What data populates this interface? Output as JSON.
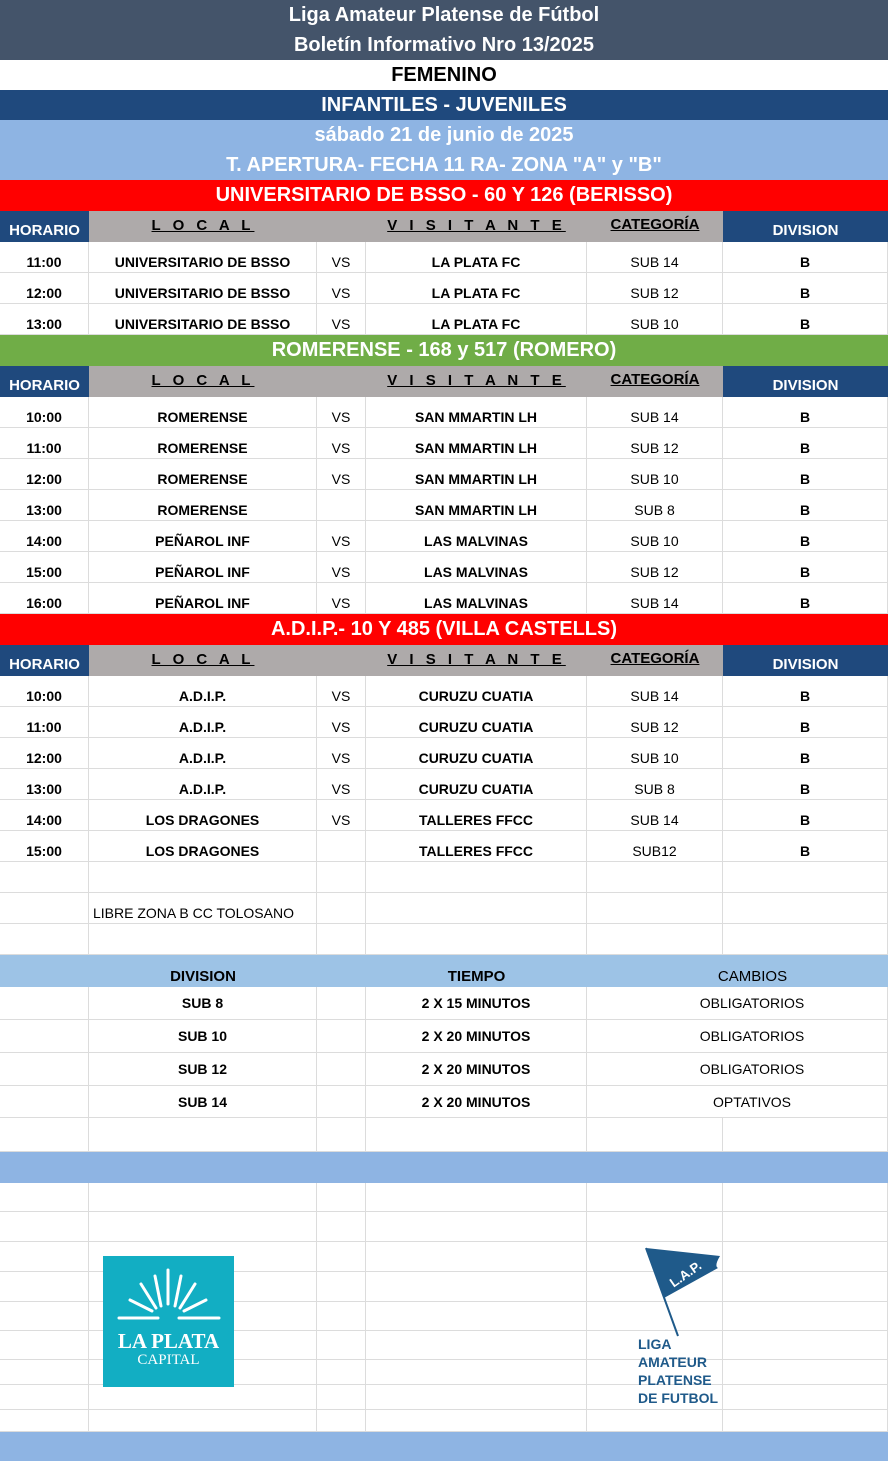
{
  "header": {
    "title": "Liga Amateur Platense de Fútbol",
    "subtitle": "Boletín Informativo Nro 13/2025",
    "category": "FEMENINO",
    "division": "INFANTILES - JUVENILES",
    "date": "sábado 21 de junio de 2025",
    "tournament": "T. APERTURA- FECHA 11 RA- ZONA \"A\" y \"B\""
  },
  "colors": {
    "title_bg": "#44546a",
    "dark_blue": "#1f497d",
    "light_blue": "#8eb4e3",
    "red": "#ff0000",
    "green": "#70ad47",
    "gray": "#aeaaaa"
  },
  "columns": {
    "horario": "HORARIO",
    "local": "L O C A L",
    "visitante": "V I S I T A N T E",
    "categoria": "CATEGORÍA",
    "division": "DIVISION"
  },
  "venues": [
    {
      "name": "UNIVERSITARIO DE BSSO - 60 Y 126 (BERISSO)",
      "color": "#ff0000",
      "matches": [
        [
          "11:00",
          "UNIVERSITARIO DE BSSO",
          "VS",
          "LA PLATA FC",
          "SUB 14",
          "B"
        ],
        [
          "12:00",
          "UNIVERSITARIO DE BSSO",
          "VS",
          "LA PLATA FC",
          "SUB 12",
          "B"
        ],
        [
          "13:00",
          "UNIVERSITARIO DE BSSO",
          "VS",
          "LA PLATA FC",
          "SUB 10",
          "B"
        ]
      ]
    },
    {
      "name": "ROMERENSE - 168 y 517 (ROMERO)",
      "color": "#70ad47",
      "matches": [
        [
          "10:00",
          "ROMERENSE",
          "VS",
          "SAN MMARTIN LH",
          "SUB 14",
          "B"
        ],
        [
          "11:00",
          "ROMERENSE",
          "VS",
          "SAN MMARTIN LH",
          "SUB 12",
          "B"
        ],
        [
          "12:00",
          "ROMERENSE",
          "VS",
          "SAN MMARTIN LH",
          "SUB 10",
          "B"
        ],
        [
          "13:00",
          "ROMERENSE",
          "",
          "SAN MMARTIN LH",
          "SUB 8",
          "B"
        ],
        [
          "14:00",
          "PEÑAROL INF",
          "VS",
          "LAS MALVINAS",
          "SUB 10",
          "B"
        ],
        [
          "15:00",
          "PEÑAROL INF",
          "VS",
          "LAS MALVINAS",
          "SUB 12",
          "B"
        ],
        [
          "16:00",
          "PEÑAROL INF",
          "VS",
          "LAS MALVINAS",
          "SUB 14",
          "B"
        ]
      ]
    },
    {
      "name": "A.D.I.P.- 10 Y 485 (VILLA CASTELLS)",
      "color": "#ff0000",
      "matches": [
        [
          "10:00",
          "A.D.I.P.",
          "VS",
          "CURUZU CUATIA",
          "SUB 14",
          "B"
        ],
        [
          "11:00",
          "A.D.I.P.",
          "VS",
          "CURUZU CUATIA",
          "SUB 12",
          "B"
        ],
        [
          "12:00",
          "A.D.I.P.",
          "VS",
          "CURUZU CUATIA",
          "SUB 10",
          "B"
        ],
        [
          "13:00",
          "A.D.I.P.",
          "VS",
          "CURUZU CUATIA",
          "SUB 8",
          "B"
        ],
        [
          "14:00",
          "LOS DRAGONES",
          "VS",
          "TALLERES FFCC",
          "SUB 14",
          "B"
        ],
        [
          "15:00",
          "LOS DRAGONES",
          "",
          "TALLERES FFCC",
          "SUB12",
          "B"
        ]
      ]
    }
  ],
  "note": "LIBRE ZONA B CC TOLOSANO",
  "rules": {
    "headers": [
      "DIVISION",
      "TIEMPO",
      "CAMBIOS"
    ],
    "rows": [
      [
        "SUB 8",
        "2 X 15 MINUTOS",
        "OBLIGATORIOS"
      ],
      [
        "SUB 10",
        "2 X 20 MINUTOS",
        "OBLIGATORIOS"
      ],
      [
        "SUB 12",
        "2 X 20 MINUTOS",
        "OBLIGATORIOS"
      ],
      [
        "SUB 14",
        "2 X 20 MINUTOS",
        "OPTATIVOS"
      ]
    ]
  },
  "logos": {
    "left_line1": "LA PLATA",
    "left_line2": "CAPITAL",
    "right_flag": "L.A.P.",
    "right_text": [
      "LIGA",
      "AMATEUR",
      "PLATENSE",
      "DE FUTBOL"
    ]
  }
}
